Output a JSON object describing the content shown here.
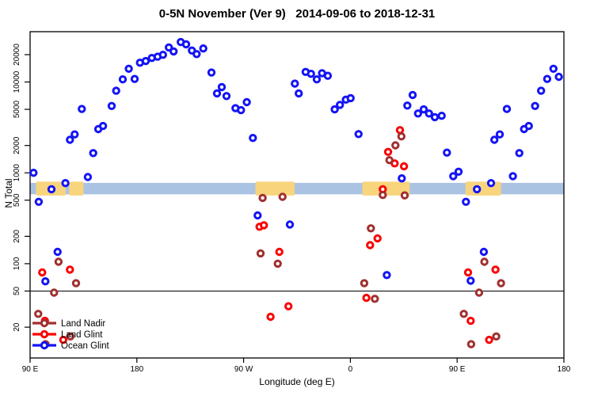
{
  "window": {
    "title": "0-5N November (Ver 9)   2014-09-06 to 2018-12-31"
  },
  "chart_data": {
    "type": "scatter",
    "title": "0-5N November (Ver 9)   2014-09-06 to 2018-12-31",
    "xlabel": "Longitude (deg E)",
    "ylabel": "N Total",
    "x_axis": {
      "description": "longitude wrapping east from 90E; tick spacing 90 deg",
      "range_deg_offset": [
        0,
        450
      ],
      "ticks": [
        {
          "offset": 0,
          "label": "90 E"
        },
        {
          "offset": 90,
          "label": "180"
        },
        {
          "offset": 180,
          "label": "90 W"
        },
        {
          "offset": 270,
          "label": "0"
        },
        {
          "offset": 360,
          "label": "90 E"
        },
        {
          "offset": 450,
          "label": "180"
        }
      ]
    },
    "y_axis": {
      "scale": "log",
      "ticks": [
        20,
        50,
        100,
        200,
        500,
        1000,
        2000,
        5000,
        10000,
        20000
      ],
      "range": [
        13,
        36000
      ]
    },
    "reference_line_y": 50,
    "band": {
      "value_low": 580,
      "value_high": 775,
      "color": "#abc3e3",
      "highlight_color": "#f8d47d",
      "highlight_segments_deg": [
        [
          5,
          30
        ],
        [
          33,
          45
        ],
        [
          190,
          223
        ],
        [
          280,
          320
        ],
        [
          367,
          397
        ]
      ]
    },
    "grid": "off",
    "legend": {
      "position": "bottom-left",
      "entries": [
        "Land Nadir",
        "Land Glint",
        "Ocean Glint"
      ]
    },
    "series": [
      {
        "name": "Ocean Glint",
        "color": "#1414f5",
        "points": [
          [
            2.9,
            1000
          ],
          [
            7.3,
            480
          ],
          [
            12.9,
            64
          ],
          [
            18,
            660
          ],
          [
            23.2,
            135
          ],
          [
            29.8,
            770
          ],
          [
            33.6,
            2310
          ],
          [
            37.6,
            2650
          ],
          [
            43.6,
            5050
          ],
          [
            48.7,
            900
          ],
          [
            53.2,
            1650
          ],
          [
            57.5,
            3030
          ],
          [
            61.5,
            3280
          ],
          [
            68.8,
            5450
          ],
          [
            72.6,
            8000
          ],
          [
            78.1,
            10700
          ],
          [
            83.2,
            14000
          ],
          [
            88.1,
            10800
          ],
          [
            92.6,
            16300
          ],
          [
            97.5,
            17000
          ],
          [
            102.6,
            18400
          ],
          [
            107.5,
            19000
          ],
          [
            112,
            19900
          ],
          [
            117,
            24000
          ],
          [
            121,
            21700
          ],
          [
            127,
            27500
          ],
          [
            131.5,
            26000
          ],
          [
            136.4,
            22200
          ],
          [
            140.4,
            20300
          ],
          [
            146,
            23400
          ],
          [
            152.9,
            12700
          ],
          [
            157.6,
            7500
          ],
          [
            161.6,
            8800
          ],
          [
            165.6,
            7000
          ],
          [
            173.1,
            5150
          ],
          [
            177.8,
            4900
          ],
          [
            182.7,
            6000
          ],
          [
            187.8,
            2420
          ],
          [
            191.8,
            340
          ],
          [
            219,
            270
          ],
          [
            223.2,
            9600
          ],
          [
            226.5,
            7500
          ],
          [
            232.3,
            12900
          ],
          [
            236.8,
            12300
          ],
          [
            241.7,
            10700
          ],
          [
            246.1,
            12500
          ],
          [
            251,
            11700
          ],
          [
            256.8,
            5000
          ],
          [
            261.2,
            5600
          ],
          [
            266.2,
            6400
          ],
          [
            270.2,
            6650
          ],
          [
            276.9,
            2670
          ],
          [
            300.7,
            75
          ],
          [
            313.3,
            870
          ],
          [
            318,
            5500
          ],
          [
            322.5,
            7200
          ],
          [
            327,
            4500
          ],
          [
            331.8,
            5000
          ],
          [
            336.3,
            4500
          ],
          [
            341.2,
            4100
          ],
          [
            347,
            4250
          ],
          [
            351.4,
            1670
          ],
          [
            356.7,
            920
          ],
          [
            361.2,
            1030
          ],
          [
            367.4,
            480
          ],
          [
            371.4,
            65
          ],
          [
            376.7,
            660
          ],
          [
            382.5,
            135
          ],
          [
            388.6,
            770
          ],
          [
            391.4,
            2310
          ],
          [
            395.9,
            2650
          ],
          [
            401.9,
            5050
          ],
          [
            407,
            920
          ],
          [
            412.4,
            1650
          ],
          [
            416.4,
            3030
          ],
          [
            420.4,
            3280
          ],
          [
            425.7,
            5450
          ],
          [
            430.8,
            8000
          ],
          [
            435.9,
            10800
          ],
          [
            441.2,
            14000
          ],
          [
            445.7,
            11400
          ]
        ]
      },
      {
        "name": "Land Glint",
        "color": "#fa0202",
        "points": [
          [
            10.2,
            80
          ],
          [
            12.5,
            23.5
          ],
          [
            28,
            14.5
          ],
          [
            33.6,
            86
          ],
          [
            193.4,
            255
          ],
          [
            197.1,
            265
          ],
          [
            202.7,
            26
          ],
          [
            210.1,
            135
          ],
          [
            217.8,
            34
          ],
          [
            283.5,
            42
          ],
          [
            286.6,
            160
          ],
          [
            292.9,
            190
          ],
          [
            297.3,
            660
          ],
          [
            301.8,
            1700
          ],
          [
            307.3,
            1270
          ],
          [
            311.8,
            2950
          ],
          [
            315.2,
            1180
          ],
          [
            369.2,
            80
          ],
          [
            371.4,
            23.5
          ],
          [
            387,
            14.5
          ],
          [
            392.3,
            86
          ]
        ]
      },
      {
        "name": "Land Nadir",
        "color": "#a03030",
        "points": [
          [
            6.9,
            28
          ],
          [
            13,
            13
          ],
          [
            20.2,
            48
          ],
          [
            24,
            105
          ],
          [
            34,
            15.8
          ],
          [
            38.7,
            61
          ],
          [
            194.3,
            130
          ],
          [
            196,
            530
          ],
          [
            208.8,
            100
          ],
          [
            212.8,
            545
          ],
          [
            281.7,
            61
          ],
          [
            287.3,
            245
          ],
          [
            290.6,
            41
          ],
          [
            297.3,
            570
          ],
          [
            302.9,
            1380
          ],
          [
            308,
            2010
          ],
          [
            313,
            2520
          ],
          [
            315.8,
            565
          ],
          [
            365.6,
            28
          ],
          [
            371.8,
            13
          ],
          [
            378.5,
            48
          ],
          [
            383,
            105
          ],
          [
            393,
            15.8
          ],
          [
            397,
            61
          ]
        ]
      }
    ]
  }
}
